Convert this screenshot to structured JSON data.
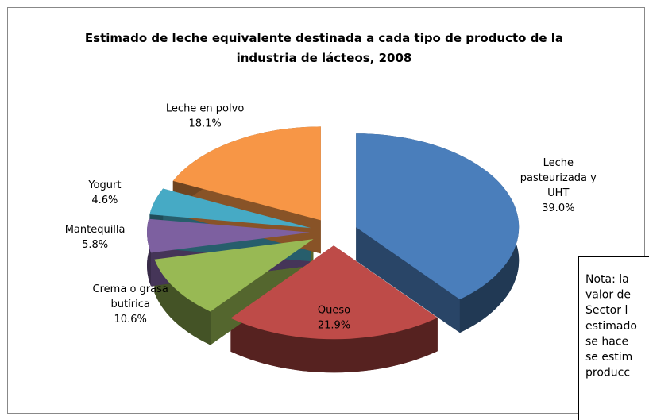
{
  "chart_data": {
    "type": "pie3d",
    "title": "Estimado de leche equivalente destinada a cada tipo de producto de la industria de lácteos, 2008",
    "categories": [
      "Leche pasteurizada y UHT",
      "Queso",
      "Crema o grasa butírica",
      "Mantequilla",
      "Yogurt",
      "Leche en polvo"
    ],
    "values": [
      39.0,
      21.9,
      10.6,
      5.8,
      4.6,
      18.1
    ],
    "value_labels": [
      "39.0%",
      "21.9%",
      "10.6%",
      "5.8%",
      "4.6%",
      "18.1%"
    ],
    "colors": [
      "#4a7ebb",
      "#be4b48",
      "#98b954",
      "#7d60a0",
      "#46aac5",
      "#f79646"
    ]
  },
  "note": {
    "lines": [
      "Nota: la",
      "valor de",
      "Sector l",
      "estimado",
      "se hace",
      "se estim",
      "producc"
    ]
  }
}
